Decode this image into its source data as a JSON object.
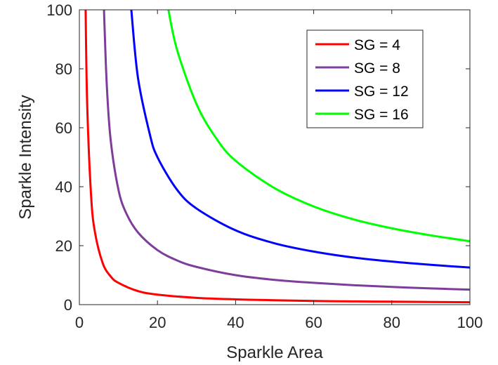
{
  "chart_data": {
    "type": "line",
    "xlabel": "Sparkle Area",
    "ylabel": "Sparkle Intensity",
    "xlim": [
      0,
      100
    ],
    "ylim": [
      0,
      100
    ],
    "xticks": [
      0,
      20,
      40,
      60,
      80,
      100
    ],
    "yticks": [
      0,
      20,
      40,
      60,
      80,
      100
    ],
    "legend_position": "top-right",
    "grid": false,
    "series": [
      {
        "name": "SG = 4",
        "color": "#ff0000",
        "x": [
          1.6,
          2,
          3,
          4,
          6,
          8,
          10,
          15,
          20,
          30,
          40,
          50,
          60,
          70,
          80,
          90,
          100
        ],
        "y": [
          100,
          68,
          37,
          24.5,
          14,
          9.6,
          7.4,
          4.6,
          3.4,
          2.3,
          1.8,
          1.5,
          1.25,
          1.1,
          1.0,
          0.9,
          0.8
        ]
      },
      {
        "name": "SG = 8",
        "color": "#7e3c9b",
        "x": [
          6.3,
          7,
          8,
          10,
          12,
          15,
          20,
          25,
          30,
          40,
          50,
          60,
          70,
          80,
          90,
          100
        ],
        "y": [
          100,
          75,
          56,
          39,
          31,
          24.5,
          18.5,
          15,
          12.8,
          10,
          8.4,
          7.4,
          6.6,
          6.0,
          5.5,
          5.1
        ]
      },
      {
        "name": "SG = 12",
        "color": "#0000ff",
        "x": [
          13.3,
          15,
          18,
          20,
          25,
          30,
          40,
          50,
          60,
          70,
          80,
          90,
          100
        ],
        "y": [
          100,
          77,
          58,
          50,
          39,
          32.6,
          25.2,
          20.8,
          18.0,
          16.0,
          14.6,
          13.5,
          12.6
        ]
      },
      {
        "name": "SG = 16",
        "color": "#00ff00",
        "x": [
          22.8,
          25,
          30,
          35,
          40,
          50,
          60,
          70,
          80,
          90,
          100
        ],
        "y": [
          100,
          86.5,
          68,
          56.5,
          48.8,
          39.5,
          33.3,
          29.0,
          25.9,
          23.5,
          21.5
        ]
      }
    ]
  }
}
